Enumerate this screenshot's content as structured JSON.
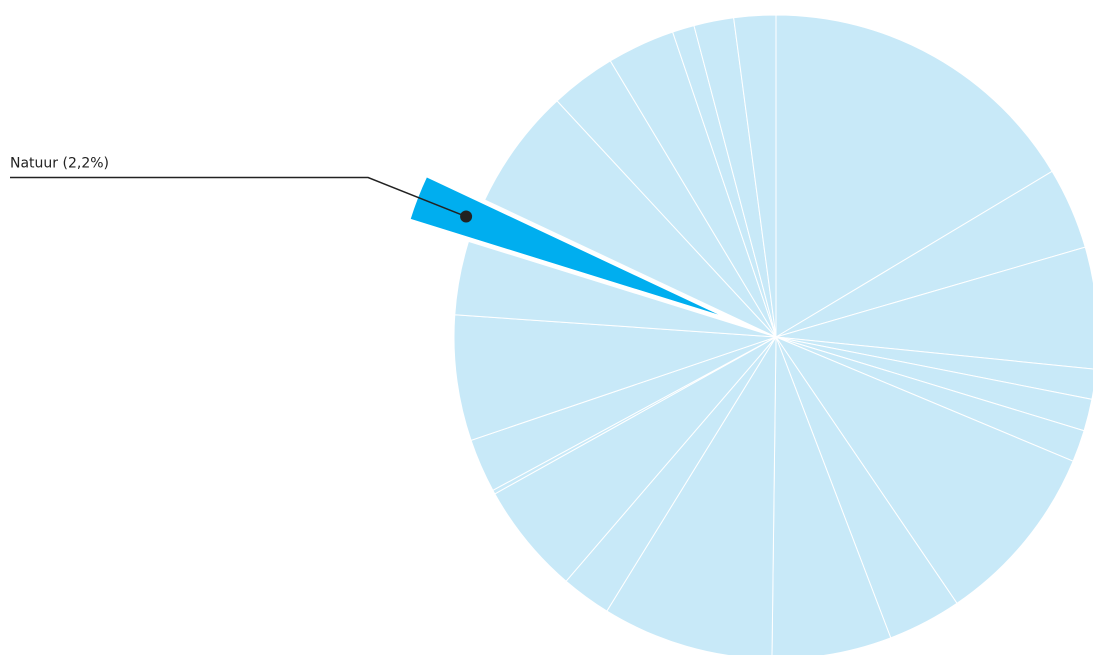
{
  "chart_data": {
    "type": "pie",
    "categories": [
      null,
      null,
      null,
      null,
      null,
      null,
      null,
      null,
      null,
      null,
      null,
      null,
      null,
      null,
      null,
      null,
      "Natuur (2,2%)",
      null,
      null,
      null,
      null,
      null,
      null
    ],
    "values": [
      16.4,
      4.1,
      6.1,
      1.5,
      1.6,
      1.6,
      9.2,
      3.7,
      6.0,
      8.6,
      2.5,
      5.6,
      0.2,
      2.7,
      6.3,
      3.7,
      2.2,
      6.1,
      3.3,
      3.4,
      1.1,
      2.0,
      2.1
    ],
    "colors": [
      "#c8e9f8",
      "#c8e9f8",
      "#c8e9f8",
      "#c8e9f8",
      "#c8e9f8",
      "#c8e9f8",
      "#c8e9f8",
      "#c8e9f8",
      "#c8e9f8",
      "#c8e9f8",
      "#c8e9f8",
      "#c8e9f8",
      "#c8e9f8",
      "#c8e9f8",
      "#c8e9f8",
      "#c8e9f8",
      "#00aeef",
      "#c8e9f8",
      "#c8e9f8",
      "#c8e9f8",
      "#c8e9f8",
      "#c8e9f8",
      "#c8e9f8"
    ]
  }
}
